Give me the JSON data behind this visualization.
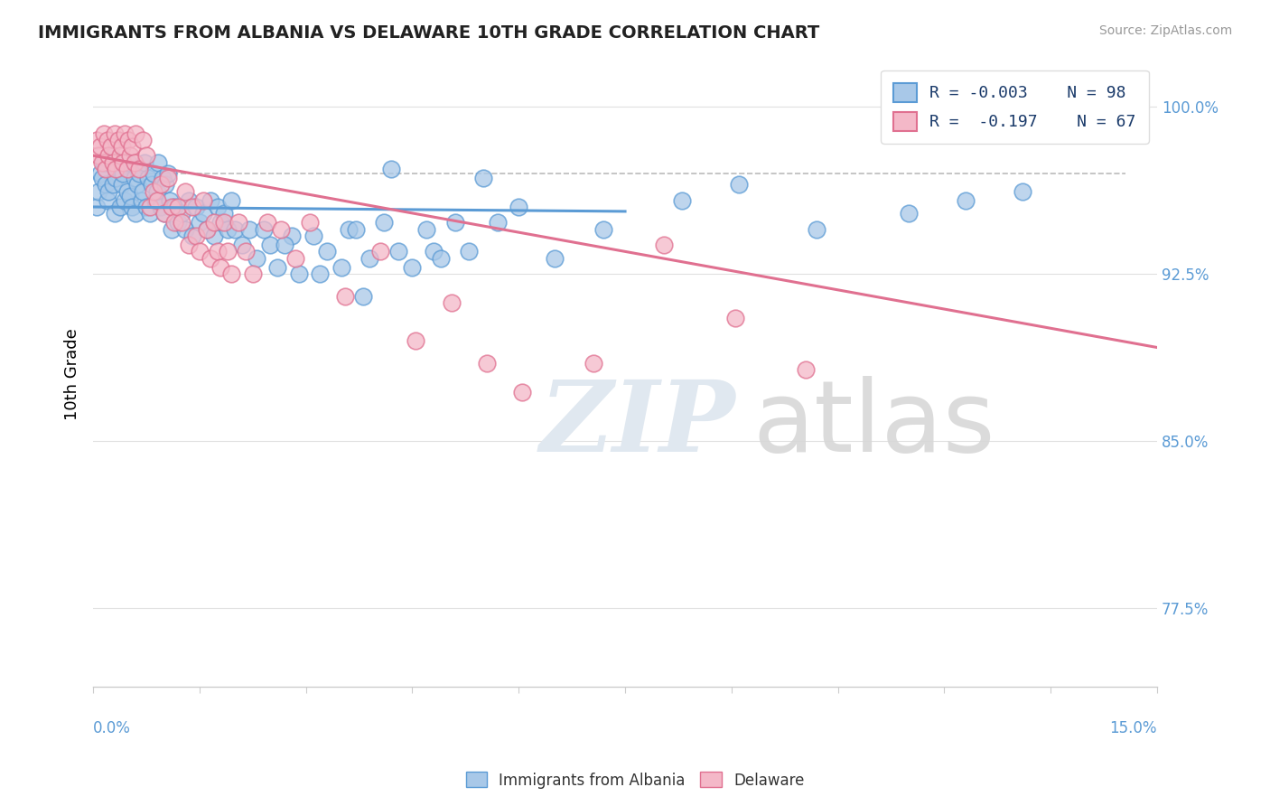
{
  "title": "IMMIGRANTS FROM ALBANIA VS DELAWARE 10TH GRADE CORRELATION CHART",
  "source": "Source: ZipAtlas.com",
  "ylabel": "10th Grade",
  "xmin": 0.0,
  "xmax": 15.0,
  "ymin": 74.0,
  "ymax": 102.0,
  "yticks": [
    77.5,
    85.0,
    92.5,
    100.0
  ],
  "ytick_labels": [
    "77.5%",
    "85.0%",
    "92.5%",
    "100.0%"
  ],
  "blue_R": -0.003,
  "blue_N": 98,
  "pink_R": -0.197,
  "pink_N": 67,
  "legend_label_blue": "Immigrants from Albania",
  "legend_label_pink": "Delaware",
  "blue_face_color": "#a8c8e8",
  "pink_face_color": "#f4b8c8",
  "blue_edge_color": "#5b9bd5",
  "pink_edge_color": "#e07090",
  "blue_line_color": "#5b9bd5",
  "pink_line_color": "#e07090",
  "dashed_line_color": "#bbbbbb",
  "blue_dots_x": [
    0.05,
    0.08,
    0.1,
    0.12,
    0.15,
    0.18,
    0.2,
    0.22,
    0.25,
    0.28,
    0.3,
    0.32,
    0.35,
    0.38,
    0.4,
    0.42,
    0.45,
    0.48,
    0.5,
    0.52,
    0.55,
    0.58,
    0.6,
    0.62,
    0.65,
    0.68,
    0.7,
    0.72,
    0.75,
    0.78,
    0.8,
    0.82,
    0.85,
    0.88,
    0.9,
    0.92,
    0.95,
    0.98,
    1.0,
    1.02,
    1.05,
    1.08,
    1.1,
    1.15,
    1.2,
    1.25,
    1.3,
    1.35,
    1.4,
    1.45,
    1.5,
    1.55,
    1.6,
    1.65,
    1.7,
    1.75,
    1.8,
    1.85,
    1.9,
    1.95,
    2.0,
    2.1,
    2.2,
    2.3,
    2.5,
    2.8,
    3.2,
    3.6,
    4.2,
    5.5,
    6.0,
    7.2,
    8.3,
    9.1,
    10.2,
    11.5,
    12.3,
    13.1,
    3.8,
    4.8,
    2.6,
    2.4,
    2.7,
    2.9,
    3.1,
    3.3,
    3.5,
    3.7,
    3.9,
    4.1,
    4.3,
    4.5,
    4.7,
    4.9,
    5.1,
    5.3,
    5.7,
    6.5
  ],
  "blue_dots_y": [
    95.5,
    96.2,
    97.0,
    96.8,
    97.5,
    96.5,
    95.8,
    96.2,
    97.8,
    96.5,
    95.2,
    96.8,
    97.2,
    95.5,
    96.5,
    97.0,
    95.8,
    96.2,
    97.5,
    96.0,
    95.5,
    96.8,
    95.2,
    96.5,
    97.0,
    95.8,
    96.2,
    97.5,
    95.5,
    96.8,
    95.2,
    96.5,
    97.0,
    95.8,
    96.2,
    97.5,
    95.5,
    96.8,
    95.2,
    96.5,
    97.0,
    95.8,
    94.5,
    95.5,
    94.8,
    95.2,
    94.5,
    95.8,
    94.2,
    95.5,
    94.8,
    95.2,
    94.5,
    95.8,
    94.2,
    95.5,
    94.8,
    95.2,
    94.5,
    95.8,
    94.5,
    93.8,
    94.5,
    93.2,
    93.8,
    94.2,
    92.5,
    94.5,
    97.2,
    96.8,
    95.5,
    94.5,
    95.8,
    96.5,
    94.5,
    95.2,
    95.8,
    96.2,
    91.5,
    93.5,
    92.8,
    94.5,
    93.8,
    92.5,
    94.2,
    93.5,
    92.8,
    94.5,
    93.2,
    94.8,
    93.5,
    92.8,
    94.5,
    93.2,
    94.8,
    93.5,
    94.8,
    93.2
  ],
  "pink_dots_x": [
    0.05,
    0.08,
    0.1,
    0.12,
    0.15,
    0.18,
    0.2,
    0.22,
    0.25,
    0.28,
    0.3,
    0.32,
    0.35,
    0.38,
    0.4,
    0.42,
    0.45,
    0.48,
    0.5,
    0.52,
    0.55,
    0.58,
    0.6,
    0.65,
    0.7,
    0.75,
    0.8,
    0.85,
    0.9,
    0.95,
    1.0,
    1.05,
    1.1,
    1.15,
    1.2,
    1.25,
    1.3,
    1.35,
    1.4,
    1.45,
    1.5,
    1.55,
    1.6,
    1.65,
    1.7,
    1.75,
    1.8,
    1.85,
    1.9,
    1.95,
    2.05,
    2.15,
    2.25,
    2.45,
    2.65,
    2.85,
    3.05,
    3.55,
    4.05,
    4.55,
    5.05,
    5.55,
    6.05,
    7.05,
    8.05,
    9.05,
    10.05
  ],
  "pink_dots_y": [
    98.5,
    97.8,
    98.2,
    97.5,
    98.8,
    97.2,
    98.5,
    97.8,
    98.2,
    97.5,
    98.8,
    97.2,
    98.5,
    97.8,
    98.2,
    97.5,
    98.8,
    97.2,
    98.5,
    97.8,
    98.2,
    97.5,
    98.8,
    97.2,
    98.5,
    97.8,
    95.5,
    96.2,
    95.8,
    96.5,
    95.2,
    96.8,
    95.5,
    94.8,
    95.5,
    94.8,
    96.2,
    93.8,
    95.5,
    94.2,
    93.5,
    95.8,
    94.5,
    93.2,
    94.8,
    93.5,
    92.8,
    94.8,
    93.5,
    92.5,
    94.8,
    93.5,
    92.5,
    94.8,
    94.5,
    93.2,
    94.8,
    91.5,
    93.5,
    89.5,
    91.2,
    88.5,
    87.2,
    88.5,
    93.8,
    90.5,
    88.2
  ],
  "dashed_y": 97.0,
  "blue_line_x0": 0.0,
  "blue_line_x1": 7.5,
  "blue_line_y0": 95.5,
  "blue_line_y1": 95.3,
  "pink_line_x0": 0.0,
  "pink_line_x1": 15.0,
  "pink_line_y0": 97.8,
  "pink_line_y1": 89.2
}
